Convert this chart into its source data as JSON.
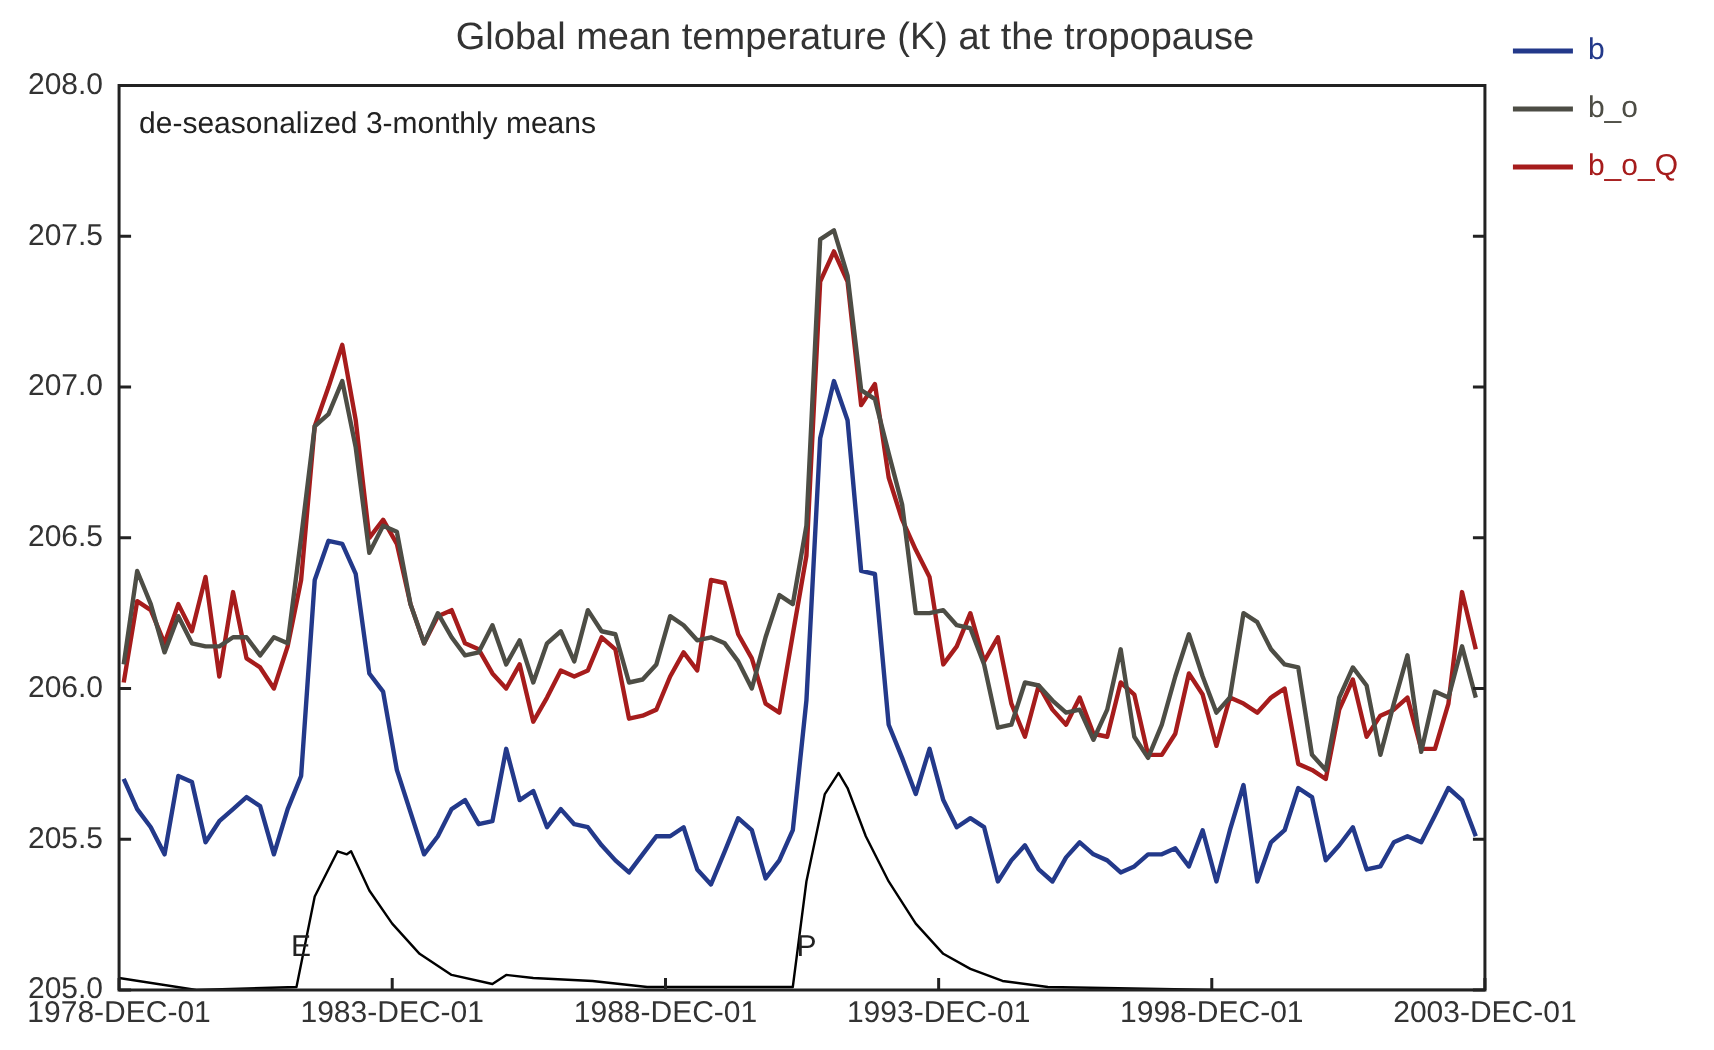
{
  "chart_data": {
    "type": "line",
    "title": "Global mean temperature (K) at the tropopause",
    "annotations": [
      "de-seasonalized 3-monthly means",
      {
        "text": "E",
        "x": "1982-04",
        "y": 205.14
      },
      {
        "text": "P",
        "x": "1991-07",
        "y": 205.14
      }
    ],
    "x": [
      "1979-01",
      "1979-04",
      "1979-07",
      "1979-10",
      "1980-01",
      "1980-04",
      "1980-07",
      "1980-10",
      "1981-01",
      "1981-04",
      "1981-07",
      "1981-10",
      "1982-01",
      "1982-04",
      "1982-07",
      "1982-10",
      "1983-01",
      "1983-04",
      "1983-07",
      "1983-10",
      "1984-01",
      "1984-04",
      "1984-07",
      "1984-10",
      "1985-01",
      "1985-04",
      "1985-07",
      "1985-10",
      "1986-01",
      "1986-04",
      "1986-07",
      "1986-10",
      "1987-01",
      "1987-04",
      "1987-07",
      "1987-10",
      "1988-01",
      "1988-04",
      "1988-07",
      "1988-10",
      "1989-01",
      "1989-04",
      "1989-07",
      "1989-10",
      "1990-01",
      "1990-04",
      "1990-07",
      "1990-10",
      "1991-01",
      "1991-04",
      "1991-07",
      "1991-10",
      "1992-01",
      "1992-04",
      "1992-07",
      "1992-10",
      "1993-01",
      "1993-04",
      "1993-07",
      "1993-10",
      "1994-01",
      "1994-04",
      "1994-07",
      "1994-10",
      "1995-01",
      "1995-04",
      "1995-07",
      "1995-10",
      "1996-01",
      "1996-04",
      "1996-07",
      "1996-10",
      "1997-01",
      "1997-04",
      "1997-07",
      "1997-10",
      "1998-01",
      "1998-04",
      "1998-07",
      "1998-10",
      "1999-01",
      "1999-04",
      "1999-07",
      "1999-10",
      "2000-01",
      "2000-04",
      "2000-07",
      "2000-10",
      "2001-01",
      "2001-04",
      "2001-07",
      "2001-10",
      "2002-01",
      "2002-04",
      "2002-07",
      "2002-10",
      "2003-01",
      "2003-04",
      "2003-07",
      "2003-10"
    ],
    "series": [
      {
        "name": "b",
        "color": "#23398a",
        "values": [
          205.7,
          205.6,
          205.54,
          205.45,
          205.71,
          205.69,
          205.49,
          205.56,
          205.6,
          205.64,
          205.61,
          205.45,
          205.6,
          205.71,
          206.36,
          206.49,
          206.48,
          206.38,
          206.05,
          205.99,
          205.73,
          205.59,
          205.45,
          205.51,
          205.6,
          205.63,
          205.55,
          205.56,
          205.8,
          205.63,
          205.66,
          205.54,
          205.6,
          205.55,
          205.54,
          205.48,
          205.43,
          205.39,
          205.45,
          205.51,
          205.51,
          205.54,
          205.4,
          205.35,
          205.46,
          205.57,
          205.53,
          205.37,
          205.43,
          205.53,
          205.96,
          206.83,
          207.02,
          206.89,
          206.39,
          206.38,
          205.88,
          205.77,
          205.65,
          205.8,
          205.63,
          205.54,
          205.57,
          205.54,
          205.36,
          205.43,
          205.48,
          205.4,
          205.36,
          205.44,
          205.49,
          205.45,
          205.43,
          205.39,
          205.41,
          205.45,
          205.45,
          205.47,
          205.41,
          205.53,
          205.36,
          205.53,
          205.68,
          205.36,
          205.49,
          205.53,
          205.67,
          205.64,
          205.43,
          205.48,
          205.54,
          205.4,
          205.41,
          205.49,
          205.51,
          205.49,
          205.58,
          205.67,
          205.63,
          205.51
        ]
      },
      {
        "name": "b_o",
        "color": "#4d4d45",
        "values": [
          206.08,
          206.39,
          206.28,
          206.12,
          206.24,
          206.15,
          206.14,
          206.14,
          206.17,
          206.17,
          206.11,
          206.17,
          206.15,
          206.5,
          206.87,
          206.91,
          207.02,
          206.8,
          206.45,
          206.54,
          206.52,
          206.28,
          206.15,
          206.25,
          206.17,
          206.11,
          206.12,
          206.21,
          206.08,
          206.16,
          206.02,
          206.15,
          206.19,
          206.09,
          206.26,
          206.19,
          206.18,
          206.02,
          206.03,
          206.08,
          206.24,
          206.21,
          206.16,
          206.17,
          206.15,
          206.09,
          206.0,
          206.17,
          206.31,
          206.28,
          206.54,
          207.49,
          207.52,
          207.37,
          206.99,
          206.96,
          206.78,
          206.61,
          206.25,
          206.25,
          206.26,
          206.21,
          206.2,
          206.08,
          205.87,
          205.88,
          206.02,
          206.01,
          205.96,
          205.92,
          205.93,
          205.83,
          205.93,
          206.13,
          205.84,
          205.77,
          205.88,
          206.04,
          206.18,
          206.04,
          205.92,
          205.97,
          206.25,
          206.22,
          206.13,
          206.08,
          206.07,
          205.78,
          205.73,
          205.97,
          206.07,
          206.01,
          205.78,
          205.95,
          206.11,
          205.79,
          205.99,
          205.97,
          206.14,
          205.97
        ]
      },
      {
        "name": "b_o_Q",
        "color": "#a61c1c",
        "values": [
          206.02,
          206.29,
          206.26,
          206.15,
          206.28,
          206.19,
          206.37,
          206.04,
          206.32,
          206.1,
          206.07,
          206.0,
          206.14,
          206.36,
          206.87,
          207.0,
          207.14,
          206.89,
          206.5,
          206.56,
          206.48,
          206.28,
          206.15,
          206.24,
          206.26,
          206.15,
          206.13,
          206.05,
          206.0,
          206.08,
          205.89,
          205.97,
          206.06,
          206.04,
          206.06,
          206.17,
          206.13,
          205.9,
          205.91,
          205.93,
          206.04,
          206.12,
          206.06,
          206.36,
          206.35,
          206.18,
          206.1,
          205.95,
          205.92,
          206.18,
          206.44,
          207.35,
          207.45,
          207.35,
          206.94,
          207.01,
          206.7,
          206.56,
          206.46,
          206.37,
          206.08,
          206.14,
          206.25,
          206.09,
          206.17,
          205.95,
          205.84,
          206.01,
          205.93,
          205.88,
          205.97,
          205.85,
          205.84,
          206.02,
          205.98,
          205.78,
          205.78,
          205.85,
          206.05,
          205.98,
          205.81,
          205.97,
          205.95,
          205.92,
          205.97,
          206.0,
          205.75,
          205.73,
          205.7,
          205.93,
          206.03,
          205.84,
          205.91,
          205.93,
          205.97,
          205.8,
          205.8,
          205.95,
          206.32,
          206.13
        ]
      },
      {
        "color": "#000000",
        "x": [
          "1978-12",
          "1980-05",
          "1982-03",
          "1982-07",
          "1982-12",
          "1983-02",
          "1983-03",
          "1983-07",
          "1983-12",
          "1984-06",
          "1985-01",
          "1985-10",
          "1986-01",
          "1986-07",
          "1987-08",
          "1988-08",
          "1991-04",
          "1991-07",
          "1991-11",
          "1992-02",
          "1992-04",
          "1992-08",
          "1993-01",
          "1993-07",
          "1994-01",
          "1994-07",
          "1995-02",
          "1995-12",
          "1999-01",
          "2003-12"
        ],
        "values": [
          205.04,
          205.0,
          205.01,
          205.31,
          205.46,
          205.45,
          205.46,
          205.33,
          205.22,
          205.12,
          205.05,
          205.02,
          205.05,
          205.04,
          205.03,
          205.01,
          205.01,
          205.36,
          205.65,
          205.72,
          205.67,
          205.51,
          205.36,
          205.22,
          205.12,
          205.07,
          205.03,
          205.01,
          205.0,
          205.0
        ]
      }
    ],
    "xlim": [
      "1978-12-01",
      "2003-12-01"
    ],
    "xticks": [
      {
        "value": "1978-12-01",
        "label": "1978-DEC-01"
      },
      {
        "value": "1983-12-01",
        "label": "1983-DEC-01"
      },
      {
        "value": "1988-12-01",
        "label": "1988-DEC-01"
      },
      {
        "value": "1993-12-01",
        "label": "1993-DEC-01"
      },
      {
        "value": "1998-12-01",
        "label": "1998-DEC-01"
      },
      {
        "value": "2003-12-01",
        "label": "2003-DEC-01"
      }
    ],
    "ylim": [
      205,
      208
    ],
    "yticks": [
      {
        "value": 205,
        "label": "205.0"
      },
      {
        "value": 205.5,
        "label": "205.5"
      },
      {
        "value": 206,
        "label": "206.0"
      },
      {
        "value": 206.5,
        "label": "206.5"
      },
      {
        "value": 207,
        "label": "207.0"
      },
      {
        "value": 207.5,
        "label": "207.5"
      },
      {
        "value": 208,
        "label": "208.0"
      }
    ],
    "legend": "top right",
    "line_style": "solid"
  }
}
